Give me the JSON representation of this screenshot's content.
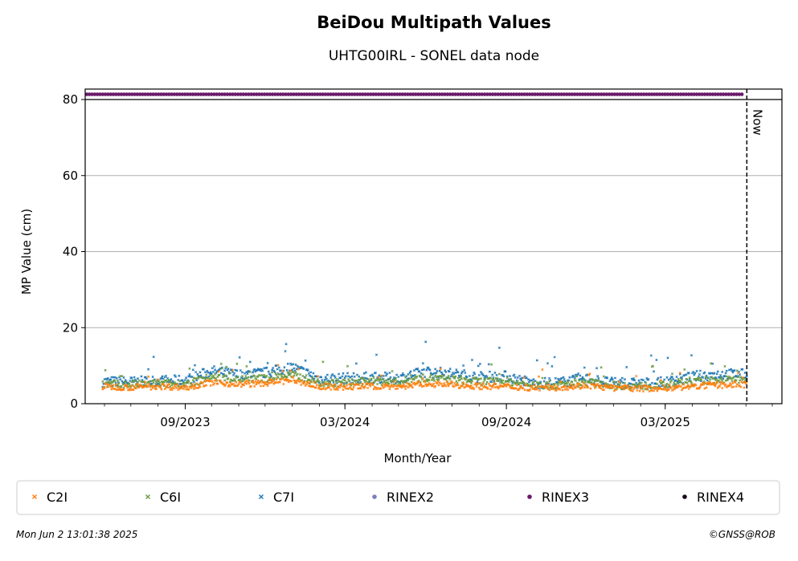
{
  "chart_data": {
    "type": "scatter",
    "title": "BeiDou Multipath Values",
    "subtitle": "UHTG00IRL - SONEL data node",
    "xlabel": "Month/Year",
    "ylabel": "MP Value (cm)",
    "ylim": [
      0,
      80
    ],
    "xlim": [
      "2023-05-10",
      "2025-07-12"
    ],
    "x_ticks": [
      "09/2023",
      "03/2024",
      "09/2024",
      "03/2025"
    ],
    "y_ticks": [
      "0",
      "20",
      "40",
      "60",
      "80"
    ],
    "grid": "horizontal",
    "now_label": "Now",
    "now_date": "2025-06-02",
    "legend_position": "bottom",
    "series": [
      {
        "name": "C2I",
        "color": "#ff7f0e",
        "marker": "x",
        "x": [
          "2023-06-01",
          "2023-07-01",
          "2023-08-01",
          "2023-09-01",
          "2023-10-01",
          "2023-11-01",
          "2023-12-01",
          "2024-01-01",
          "2024-02-01",
          "2024-03-01",
          "2024-04-01",
          "2024-05-01",
          "2024-06-01",
          "2024-07-01",
          "2024-08-01",
          "2024-09-01",
          "2024-10-01",
          "2024-11-01",
          "2024-12-01",
          "2025-01-01",
          "2025-02-01",
          "2025-03-01",
          "2025-04-01",
          "2025-05-01",
          "2025-06-01"
        ],
        "values": [
          4.5,
          4.3,
          4.6,
          4.3,
          5.6,
          5.1,
          5.4,
          6.2,
          4.5,
          4.4,
          4.6,
          4.5,
          5.2,
          5.0,
          4.6,
          4.5,
          4.2,
          4.3,
          4.8,
          4.1,
          4.0,
          4.1,
          4.5,
          4.9,
          5.0
        ]
      },
      {
        "name": "C6I",
        "color": "#6a9a41",
        "marker": "x",
        "x": [
          "2023-06-01",
          "2023-07-01",
          "2023-08-01",
          "2023-09-01",
          "2023-10-01",
          "2023-11-01",
          "2023-12-01",
          "2024-01-01",
          "2024-02-01",
          "2024-03-01",
          "2024-04-01",
          "2024-05-01",
          "2024-06-01",
          "2024-07-01",
          "2024-08-01",
          "2024-09-01",
          "2024-10-01",
          "2024-11-01",
          "2024-12-01",
          "2025-01-01",
          "2025-02-01",
          "2025-03-01",
          "2025-04-01",
          "2025-05-01",
          "2025-06-01"
        ],
        "values": [
          5.2,
          5.0,
          5.3,
          5.2,
          7.0,
          6.4,
          6.7,
          7.6,
          5.5,
          5.5,
          5.9,
          5.7,
          6.8,
          6.4,
          5.8,
          5.9,
          4.8,
          4.9,
          5.7,
          4.8,
          4.6,
          4.9,
          5.7,
          6.3,
          6.3
        ]
      },
      {
        "name": "C7I",
        "color": "#1f77b4",
        "marker": "x",
        "x": [
          "2023-06-01",
          "2023-07-01",
          "2023-08-01",
          "2023-09-01",
          "2023-10-01",
          "2023-11-01",
          "2023-12-01",
          "2024-01-01",
          "2024-02-01",
          "2024-03-01",
          "2024-04-01",
          "2024-05-01",
          "2024-06-01",
          "2024-07-01",
          "2024-08-01",
          "2024-09-01",
          "2024-10-01",
          "2024-11-01",
          "2024-12-01",
          "2025-01-01",
          "2025-02-01",
          "2025-03-01",
          "2025-04-01",
          "2025-05-01",
          "2025-06-01"
        ],
        "values": [
          5.8,
          5.7,
          6.0,
          6.1,
          8.6,
          7.6,
          8.1,
          9.6,
          6.6,
          6.7,
          6.9,
          6.7,
          8.4,
          7.9,
          7.0,
          7.2,
          5.4,
          5.6,
          6.6,
          5.4,
          5.3,
          5.6,
          7.1,
          7.8,
          7.7
        ]
      },
      {
        "name": "RINEX2",
        "color": "#7b7fbf",
        "marker": "dot",
        "x": [],
        "values": []
      },
      {
        "name": "RINEX3",
        "color": "#6a1a6a",
        "marker": "dot",
        "x_range": [
          "2023-05-10",
          "2025-06-02"
        ],
        "band": "top"
      },
      {
        "name": "RINEX4",
        "color": "#1a0a1a",
        "marker": "dot",
        "x": [],
        "values": []
      }
    ]
  },
  "footer": {
    "timestamp": "Mon Jun  2 13:01:38 2025",
    "credit": "©GNSS@ROB"
  }
}
